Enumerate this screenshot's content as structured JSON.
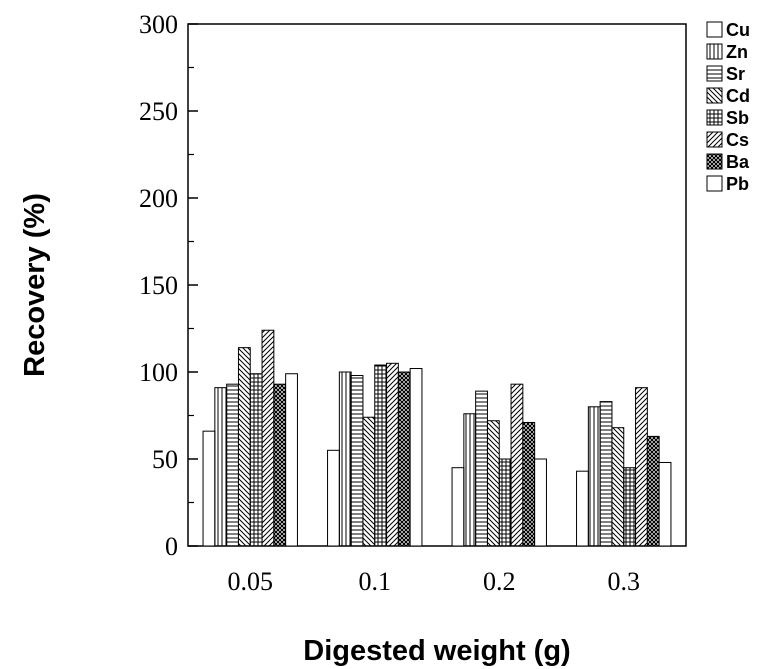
{
  "chart_data": {
    "type": "bar",
    "title": "",
    "xlabel": "Digested weight (g)",
    "ylabel": "Recovery (%)",
    "categories": [
      "0.05",
      "0.1",
      "0.2",
      "0.3"
    ],
    "ylim": [
      0,
      300
    ],
    "yticks": [
      "0",
      "50",
      "100",
      "150",
      "200",
      "250",
      "300"
    ],
    "grid": false,
    "legend_position": "right",
    "series": [
      {
        "name": "Cu",
        "pattern": "blank",
        "values": [
          66,
          55,
          45,
          43
        ]
      },
      {
        "name": "Zn",
        "pattern": "vertical",
        "values": [
          91,
          100,
          76,
          80
        ]
      },
      {
        "name": "Sr",
        "pattern": "horizontal",
        "values": [
          93,
          98,
          89,
          83
        ]
      },
      {
        "name": "Cd",
        "pattern": "backslash",
        "values": [
          114,
          74,
          72,
          68
        ]
      },
      {
        "name": "Sb",
        "pattern": "grid",
        "values": [
          99,
          104,
          50,
          45
        ]
      },
      {
        "name": "Cs",
        "pattern": "slash",
        "values": [
          124,
          105,
          93,
          91
        ]
      },
      {
        "name": "Ba",
        "pattern": "crosshatch",
        "values": [
          93,
          100,
          71,
          63
        ]
      },
      {
        "name": "Pb",
        "pattern": "blank",
        "values": [
          99,
          102,
          50,
          48
        ]
      }
    ]
  }
}
